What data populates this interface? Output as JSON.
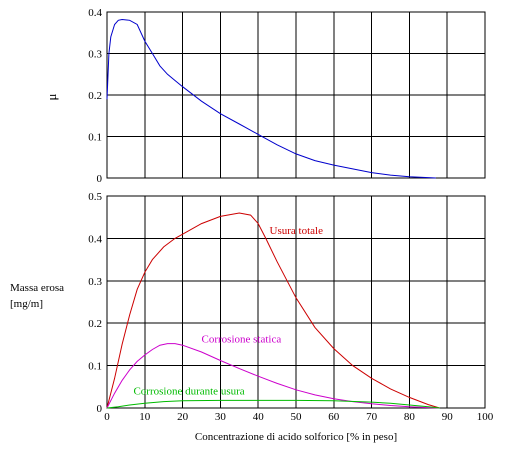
{
  "chart_data": [
    {
      "type": "line",
      "ylabel": "μ",
      "xlim": [
        0,
        100
      ],
      "ylim": [
        0,
        0.4
      ],
      "x_ticks": [],
      "y_ticks": [
        "0",
        "0.1",
        "0.2",
        "0.3",
        "0.4"
      ],
      "y_tick_values": [
        0,
        0.1,
        0.2,
        0.3,
        0.4
      ],
      "grid": true,
      "series": [
        {
          "color": "#0000cc",
          "x": [
            0,
            0.5,
            1,
            2,
            3,
            4,
            6,
            8,
            10,
            12,
            14,
            16,
            18,
            20,
            25,
            30,
            35,
            40,
            45,
            50,
            55,
            60,
            65,
            70,
            75,
            80,
            85,
            87
          ],
          "y": [
            0.19,
            0.3,
            0.34,
            0.37,
            0.38,
            0.382,
            0.38,
            0.37,
            0.33,
            0.3,
            0.27,
            0.25,
            0.235,
            0.22,
            0.185,
            0.155,
            0.13,
            0.105,
            0.08,
            0.058,
            0.042,
            0.031,
            0.022,
            0.013,
            0.007,
            0.003,
            0.001,
            0
          ]
        }
      ]
    },
    {
      "type": "line",
      "xlabel": "Concentrazione di acido solforico [% in peso]",
      "ylabel_lines": [
        "Massa erosa",
        "[mg/m]"
      ],
      "xlim": [
        0,
        100
      ],
      "ylim": [
        0,
        0.5
      ],
      "x_ticks": [
        "0",
        "10",
        "20",
        "30",
        "40",
        "50",
        "60",
        "70",
        "80",
        "90",
        "100"
      ],
      "x_tick_values": [
        0,
        10,
        20,
        30,
        40,
        50,
        60,
        70,
        80,
        90,
        100
      ],
      "y_ticks": [
        "0",
        "0.1",
        "0.2",
        "0.3",
        "0.4",
        "0.5"
      ],
      "y_tick_values": [
        0,
        0.1,
        0.2,
        0.3,
        0.4,
        0.5
      ],
      "grid": true,
      "series": [
        {
          "name": "Usura totale",
          "color": "#cc0000",
          "label_at": [
            43,
            0.41
          ],
          "x": [
            0,
            2,
            4,
            6,
            8,
            10,
            12,
            15,
            18,
            20,
            25,
            30,
            35,
            38,
            40,
            42,
            45,
            50,
            55,
            60,
            65,
            70,
            75,
            80,
            85,
            88
          ],
          "y": [
            0,
            0.07,
            0.15,
            0.22,
            0.28,
            0.32,
            0.35,
            0.38,
            0.4,
            0.41,
            0.435,
            0.452,
            0.46,
            0.455,
            0.435,
            0.4,
            0.345,
            0.26,
            0.19,
            0.14,
            0.1,
            0.07,
            0.045,
            0.025,
            0.008,
            0
          ]
        },
        {
          "name": "Corrosione statica",
          "color": "#cc00cc",
          "label_at": [
            25,
            0.155
          ],
          "x": [
            0,
            2,
            4,
            6,
            8,
            10,
            12,
            14,
            16,
            18,
            20,
            25,
            30,
            35,
            40,
            45,
            50,
            55,
            60,
            65,
            70,
            75,
            80,
            85,
            88
          ],
          "y": [
            0,
            0.035,
            0.065,
            0.09,
            0.11,
            0.125,
            0.138,
            0.148,
            0.152,
            0.152,
            0.148,
            0.132,
            0.112,
            0.093,
            0.075,
            0.058,
            0.043,
            0.031,
            0.022,
            0.015,
            0.01,
            0.006,
            0.003,
            0.001,
            0
          ]
        },
        {
          "name": "Corrosione durante usura",
          "color": "#00bb00",
          "label_at": [
            7,
            0.032
          ],
          "x": [
            0,
            3,
            6,
            10,
            15,
            20,
            30,
            40,
            50,
            60,
            70,
            75,
            80,
            85,
            88
          ],
          "y": [
            0,
            0.003,
            0.007,
            0.011,
            0.015,
            0.017,
            0.018,
            0.018,
            0.018,
            0.017,
            0.014,
            0.011,
            0.007,
            0.003,
            0
          ]
        }
      ]
    }
  ]
}
